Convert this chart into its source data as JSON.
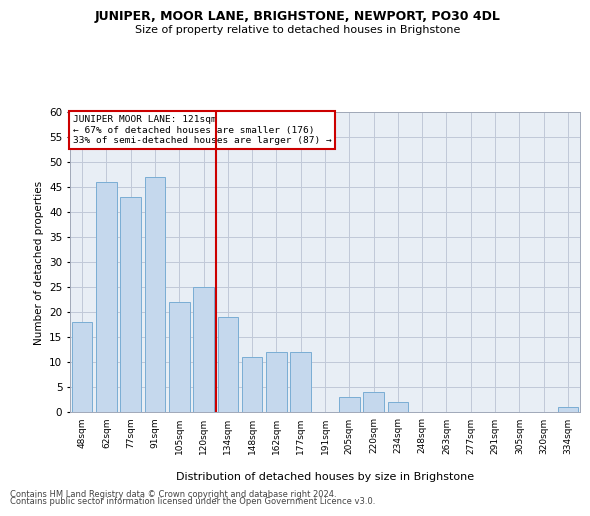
{
  "title": "JUNIPER, MOOR LANE, BRIGHSTONE, NEWPORT, PO30 4DL",
  "subtitle": "Size of property relative to detached houses in Brighstone",
  "xlabel": "Distribution of detached houses by size in Brighstone",
  "ylabel": "Number of detached properties",
  "categories": [
    "48sqm",
    "62sqm",
    "77sqm",
    "91sqm",
    "105sqm",
    "120sqm",
    "134sqm",
    "148sqm",
    "162sqm",
    "177sqm",
    "191sqm",
    "205sqm",
    "220sqm",
    "234sqm",
    "248sqm",
    "263sqm",
    "277sqm",
    "291sqm",
    "305sqm",
    "320sqm",
    "334sqm"
  ],
  "values": [
    18,
    46,
    43,
    47,
    22,
    25,
    19,
    11,
    12,
    12,
    0,
    3,
    4,
    2,
    0,
    0,
    0,
    0,
    0,
    0,
    1
  ],
  "bar_color": "#c5d8ed",
  "bar_edge_color": "#7aadd4",
  "grid_color": "#c0c8d8",
  "bg_color": "#e8eef5",
  "vline_x": 5.5,
  "vline_color": "#cc0000",
  "annotation_title": "JUNIPER MOOR LANE: 121sqm",
  "annotation_line1": "← 67% of detached houses are smaller (176)",
  "annotation_line2": "33% of semi-detached houses are larger (87) →",
  "annotation_box_color": "#cc0000",
  "ylim": [
    0,
    60
  ],
  "yticks": [
    0,
    5,
    10,
    15,
    20,
    25,
    30,
    35,
    40,
    45,
    50,
    55,
    60
  ],
  "footer1": "Contains HM Land Registry data © Crown copyright and database right 2024.",
  "footer2": "Contains public sector information licensed under the Open Government Licence v3.0."
}
